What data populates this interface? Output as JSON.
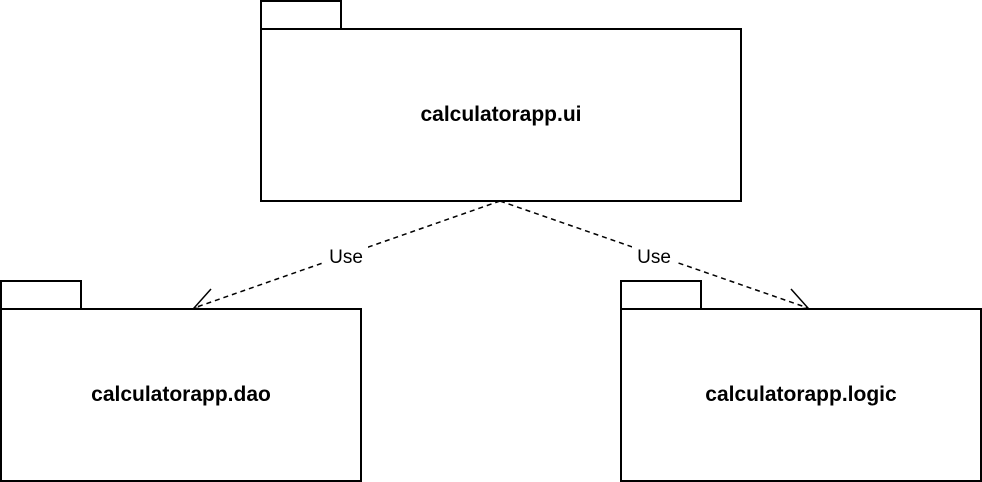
{
  "packages": {
    "ui": {
      "name": "calculatorapp.ui"
    },
    "dao": {
      "name": "calculatorapp.dao"
    },
    "logic": {
      "name": "calculatorapp.logic"
    }
  },
  "dependencies": {
    "ui_to_dao": {
      "label": "Use"
    },
    "ui_to_logic": {
      "label": "Use"
    }
  }
}
